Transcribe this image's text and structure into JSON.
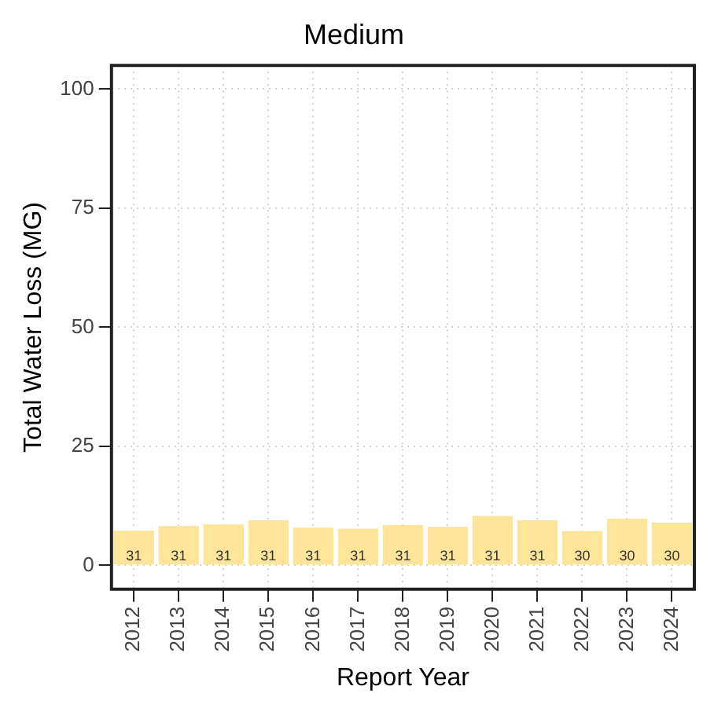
{
  "chart_data": {
    "type": "bar",
    "title": "Medium",
    "xlabel": "Report Year",
    "ylabel": "Total Water Loss (MG)",
    "categories": [
      "2012",
      "2013",
      "2014",
      "2015",
      "2016",
      "2017",
      "2018",
      "2019",
      "2020",
      "2021",
      "2022",
      "2023",
      "2024"
    ],
    "values": [
      7.3,
      8.3,
      8.6,
      9.5,
      7.9,
      7.7,
      8.5,
      8.1,
      10.4,
      9.5,
      7.2,
      9.8,
      9.0
    ],
    "color": "#fee59a",
    "ylim": [
      -5,
      105
    ],
    "yticks": [
      0,
      25,
      50,
      75,
      100
    ],
    "grid": true,
    "legend": false,
    "annotations": [
      {
        "text": "31",
        "x": "2012",
        "y": 0
      },
      {
        "text": "31",
        "x": "2013",
        "y": 0
      },
      {
        "text": "31",
        "x": "2014",
        "y": 0
      },
      {
        "text": "31",
        "x": "2015",
        "y": 0
      },
      {
        "text": "31",
        "x": "2016",
        "y": 0
      },
      {
        "text": "31",
        "x": "2017",
        "y": 0
      },
      {
        "text": "31",
        "x": "2018",
        "y": 0
      },
      {
        "text": "31",
        "x": "2019",
        "y": 0
      },
      {
        "text": "31",
        "x": "2020",
        "y": 0
      },
      {
        "text": "31",
        "x": "2021",
        "y": 0
      },
      {
        "text": "30",
        "x": "2022",
        "y": 0
      },
      {
        "text": "30",
        "x": "2023",
        "y": 0
      },
      {
        "text": "30",
        "x": "2024",
        "y": 0
      }
    ]
  }
}
